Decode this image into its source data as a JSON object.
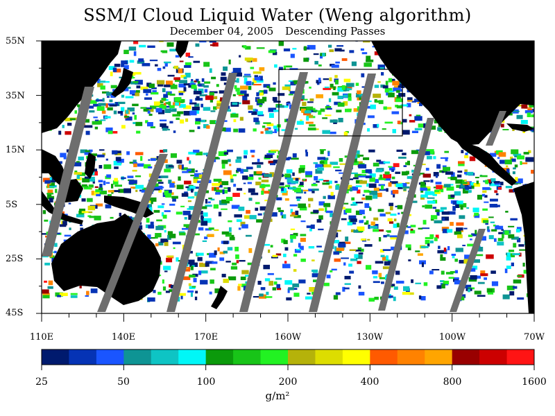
{
  "title": "SSM/I Cloud Liquid Water (Weng algorithm)",
  "subtitle": {
    "date": "December 04, 2005",
    "passes": "Descending Passes"
  },
  "lat_labels": [
    "55N",
    "35N",
    "15N",
    "5S",
    "25S",
    "45S"
  ],
  "lon_labels": [
    "110E",
    "140E",
    "170E",
    "160W",
    "130W",
    "100W",
    "70W"
  ],
  "colorbar": {
    "tick_labels": [
      "25",
      "50",
      "100",
      "200",
      "400",
      "800",
      "1600"
    ],
    "units": "g/m²",
    "colors": [
      "#001a6e",
      "#0533b5",
      "#1a55ff",
      "#0e9494",
      "#0ec4c4",
      "#00f7f7",
      "#0b9a0b",
      "#18c418",
      "#22f222",
      "#b5b20a",
      "#dddd00",
      "#ffff00",
      "#ff5a00",
      "#ff8200",
      "#ffa500",
      "#990000",
      "#cc0000",
      "#ff1414"
    ]
  },
  "colors": {
    "land": "#000000",
    "no_data_swath_gap": "#6e6e6e",
    "clear_ocean": "#ffffff"
  }
}
